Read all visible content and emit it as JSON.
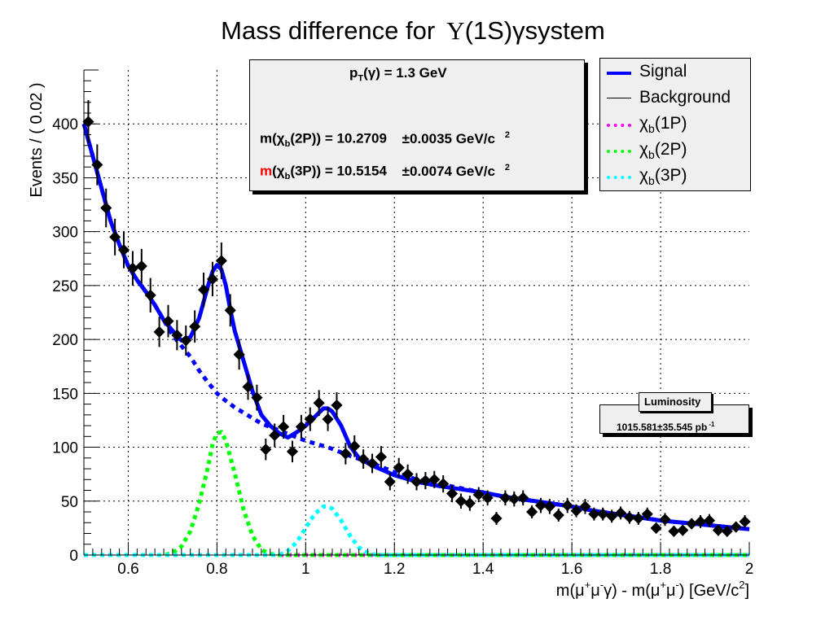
{
  "chart_data": {
    "type": "scatter",
    "title_main": "Mass difference for",
    "title_upsilon": "Υ",
    "title_rest": "(1S)γsystem",
    "ylabel": "Events / ( 0.02 )",
    "xlabel": {
      "p1": "m(μ",
      "s1": "+",
      "p2": "μ",
      "s2": "-",
      "p3": "γ) - m(μ",
      "s3": "+",
      "p4": "μ",
      "s4": "-",
      "p5": ") [GeV/c",
      "s5": "2",
      "p6": "]"
    },
    "xlim": [
      0.5,
      2.0
    ],
    "ylim": [
      0,
      450
    ],
    "xticks": [
      0.6,
      0.8,
      1.0,
      1.2,
      1.4,
      1.6,
      1.8,
      2.0
    ],
    "xtick_labels": [
      "0.6",
      "0.8",
      "1",
      "1.2",
      "1.4",
      "1.6",
      "1.8",
      "2"
    ],
    "yticks": [
      0,
      50,
      100,
      150,
      200,
      250,
      300,
      350,
      400
    ],
    "ytick_labels": [
      "0",
      "50",
      "100",
      "150",
      "200",
      "250",
      "300",
      "350",
      "400"
    ],
    "grid": true,
    "data_points": [
      {
        "x": 0.51,
        "y": 402,
        "err": 20
      },
      {
        "x": 0.53,
        "y": 362,
        "err": 19
      },
      {
        "x": 0.55,
        "y": 322,
        "err": 18
      },
      {
        "x": 0.57,
        "y": 295,
        "err": 17
      },
      {
        "x": 0.59,
        "y": 283,
        "err": 17
      },
      {
        "x": 0.61,
        "y": 266,
        "err": 16
      },
      {
        "x": 0.63,
        "y": 268,
        "err": 16
      },
      {
        "x": 0.65,
        "y": 241,
        "err": 16
      },
      {
        "x": 0.67,
        "y": 207,
        "err": 14
      },
      {
        "x": 0.69,
        "y": 217,
        "err": 15
      },
      {
        "x": 0.71,
        "y": 204,
        "err": 14
      },
      {
        "x": 0.73,
        "y": 199,
        "err": 14
      },
      {
        "x": 0.75,
        "y": 212,
        "err": 15
      },
      {
        "x": 0.77,
        "y": 246,
        "err": 16
      },
      {
        "x": 0.79,
        "y": 256,
        "err": 16
      },
      {
        "x": 0.81,
        "y": 273,
        "err": 17
      },
      {
        "x": 0.83,
        "y": 227,
        "err": 15
      },
      {
        "x": 0.85,
        "y": 186,
        "err": 14
      },
      {
        "x": 0.87,
        "y": 156,
        "err": 12
      },
      {
        "x": 0.89,
        "y": 146,
        "err": 12
      },
      {
        "x": 0.91,
        "y": 98,
        "err": 10
      },
      {
        "x": 0.93,
        "y": 111,
        "err": 11
      },
      {
        "x": 0.95,
        "y": 119,
        "err": 11
      },
      {
        "x": 0.97,
        "y": 96,
        "err": 10
      },
      {
        "x": 0.99,
        "y": 119,
        "err": 11
      },
      {
        "x": 1.01,
        "y": 126,
        "err": 11
      },
      {
        "x": 1.03,
        "y": 141,
        "err": 12
      },
      {
        "x": 1.05,
        "y": 126,
        "err": 11
      },
      {
        "x": 1.07,
        "y": 139,
        "err": 12
      },
      {
        "x": 1.09,
        "y": 94,
        "err": 10
      },
      {
        "x": 1.11,
        "y": 101,
        "err": 10
      },
      {
        "x": 1.13,
        "y": 89,
        "err": 9
      },
      {
        "x": 1.15,
        "y": 85,
        "err": 9
      },
      {
        "x": 1.17,
        "y": 91,
        "err": 10
      },
      {
        "x": 1.19,
        "y": 68,
        "err": 8
      },
      {
        "x": 1.21,
        "y": 81,
        "err": 9
      },
      {
        "x": 1.23,
        "y": 75,
        "err": 9
      },
      {
        "x": 1.25,
        "y": 68,
        "err": 8
      },
      {
        "x": 1.27,
        "y": 69,
        "err": 8
      },
      {
        "x": 1.29,
        "y": 70,
        "err": 8
      },
      {
        "x": 1.31,
        "y": 66,
        "err": 8
      },
      {
        "x": 1.33,
        "y": 57,
        "err": 8
      },
      {
        "x": 1.35,
        "y": 50,
        "err": 7
      },
      {
        "x": 1.37,
        "y": 48,
        "err": 7
      },
      {
        "x": 1.39,
        "y": 56,
        "err": 7
      },
      {
        "x": 1.41,
        "y": 53,
        "err": 7
      },
      {
        "x": 1.43,
        "y": 34,
        "err": 6
      },
      {
        "x": 1.45,
        "y": 53,
        "err": 7
      },
      {
        "x": 1.47,
        "y": 52,
        "err": 7
      },
      {
        "x": 1.49,
        "y": 53,
        "err": 7
      },
      {
        "x": 1.51,
        "y": 40,
        "err": 6
      },
      {
        "x": 1.53,
        "y": 46,
        "err": 7
      },
      {
        "x": 1.55,
        "y": 45,
        "err": 7
      },
      {
        "x": 1.57,
        "y": 37,
        "err": 6
      },
      {
        "x": 1.59,
        "y": 46,
        "err": 7
      },
      {
        "x": 1.61,
        "y": 41,
        "err": 6
      },
      {
        "x": 1.63,
        "y": 45,
        "err": 7
      },
      {
        "x": 1.65,
        "y": 38,
        "err": 6
      },
      {
        "x": 1.67,
        "y": 38,
        "err": 6
      },
      {
        "x": 1.69,
        "y": 36,
        "err": 6
      },
      {
        "x": 1.71,
        "y": 39,
        "err": 6
      },
      {
        "x": 1.73,
        "y": 35,
        "err": 6
      },
      {
        "x": 1.75,
        "y": 34,
        "err": 6
      },
      {
        "x": 1.77,
        "y": 38,
        "err": 6
      },
      {
        "x": 1.79,
        "y": 25,
        "err": 5
      },
      {
        "x": 1.81,
        "y": 33,
        "err": 6
      },
      {
        "x": 1.83,
        "y": 22,
        "err": 5
      },
      {
        "x": 1.85,
        "y": 23,
        "err": 5
      },
      {
        "x": 1.87,
        "y": 29,
        "err": 5
      },
      {
        "x": 1.89,
        "y": 31,
        "err": 6
      },
      {
        "x": 1.91,
        "y": 32,
        "err": 6
      },
      {
        "x": 1.93,
        "y": 23,
        "err": 5
      },
      {
        "x": 1.95,
        "y": 22,
        "err": 5
      },
      {
        "x": 1.97,
        "y": 26,
        "err": 5
      },
      {
        "x": 1.99,
        "y": 31,
        "err": 6
      }
    ],
    "curves": {
      "background": {
        "color": "#0000ff",
        "points": [
          [
            0.5,
            400
          ],
          [
            0.52,
            370
          ],
          [
            0.54,
            340
          ],
          [
            0.56,
            310
          ],
          [
            0.58,
            288
          ],
          [
            0.6,
            268
          ],
          [
            0.62,
            255
          ],
          [
            0.64,
            244
          ],
          [
            0.66,
            232
          ],
          [
            0.68,
            218
          ],
          [
            0.7,
            204
          ],
          [
            0.72,
            194
          ],
          [
            0.74,
            184
          ],
          [
            0.76,
            171
          ],
          [
            0.78,
            160
          ],
          [
            0.8,
            150
          ],
          [
            0.82,
            143
          ],
          [
            0.84,
            137
          ],
          [
            0.86,
            132
          ],
          [
            0.88,
            127
          ],
          [
            0.9,
            122
          ],
          [
            0.95,
            114
          ],
          [
            1.0,
            106
          ],
          [
            1.05,
            100
          ],
          [
            1.1,
            92
          ],
          [
            1.15,
            85
          ],
          [
            1.2,
            77
          ],
          [
            1.25,
            70
          ],
          [
            1.3,
            66
          ],
          [
            1.35,
            62
          ],
          [
            1.4,
            58
          ],
          [
            1.45,
            54
          ],
          [
            1.5,
            51
          ],
          [
            1.55,
            48
          ],
          [
            1.6,
            45
          ],
          [
            1.65,
            41
          ],
          [
            1.7,
            38
          ],
          [
            1.75,
            35
          ],
          [
            1.8,
            32
          ],
          [
            1.85,
            30
          ],
          [
            1.9,
            28
          ],
          [
            1.95,
            26
          ],
          [
            2.0,
            24
          ]
        ]
      },
      "signal": {
        "color": "#0000ff",
        "points": [
          [
            0.5,
            400
          ],
          [
            0.52,
            370
          ],
          [
            0.54,
            340
          ],
          [
            0.56,
            310
          ],
          [
            0.58,
            288
          ],
          [
            0.6,
            268
          ],
          [
            0.62,
            255
          ],
          [
            0.64,
            244
          ],
          [
            0.66,
            232
          ],
          [
            0.68,
            218
          ],
          [
            0.7,
            208
          ],
          [
            0.72,
            199
          ],
          [
            0.74,
            202
          ],
          [
            0.76,
            220
          ],
          [
            0.78,
            250
          ],
          [
            0.79,
            263
          ],
          [
            0.8,
            269
          ],
          [
            0.81,
            265
          ],
          [
            0.82,
            250
          ],
          [
            0.83,
            228
          ],
          [
            0.84,
            208
          ],
          [
            0.86,
            180
          ],
          [
            0.88,
            152
          ],
          [
            0.9,
            130
          ],
          [
            0.92,
            120
          ],
          [
            0.94,
            113
          ],
          [
            0.96,
            109
          ],
          [
            0.98,
            114
          ],
          [
            1.0,
            120
          ],
          [
            1.02,
            128
          ],
          [
            1.04,
            136
          ],
          [
            1.05,
            136
          ],
          [
            1.06,
            133
          ],
          [
            1.08,
            120
          ],
          [
            1.1,
            101
          ],
          [
            1.12,
            90
          ],
          [
            1.15,
            83
          ],
          [
            1.2,
            74
          ],
          [
            1.25,
            68
          ],
          [
            1.3,
            64
          ],
          [
            1.35,
            61
          ],
          [
            1.4,
            58
          ],
          [
            1.45,
            54
          ],
          [
            1.5,
            51
          ],
          [
            1.55,
            48
          ],
          [
            1.6,
            45
          ],
          [
            1.65,
            41
          ],
          [
            1.7,
            38
          ],
          [
            1.75,
            35
          ],
          [
            1.8,
            32
          ],
          [
            1.85,
            30
          ],
          [
            1.9,
            28
          ],
          [
            1.95,
            26
          ],
          [
            2.0,
            24
          ]
        ]
      },
      "chib1P": {
        "color": "#ff00ff",
        "points": [
          [
            0.5,
            0
          ],
          [
            2.0,
            0
          ]
        ]
      },
      "chib2P": {
        "color": "#00ff00",
        "points": [
          [
            0.5,
            0
          ],
          [
            0.68,
            0
          ],
          [
            0.7,
            2
          ],
          [
            0.72,
            8
          ],
          [
            0.74,
            22
          ],
          [
            0.76,
            48
          ],
          [
            0.78,
            82
          ],
          [
            0.79,
            103
          ],
          [
            0.8,
            113
          ],
          [
            0.81,
            114
          ],
          [
            0.82,
            106
          ],
          [
            0.84,
            76
          ],
          [
            0.86,
            42
          ],
          [
            0.88,
            18
          ],
          [
            0.9,
            5
          ],
          [
            0.92,
            1
          ],
          [
            0.94,
            0
          ],
          [
            2.0,
            0
          ]
        ]
      },
      "chib3P": {
        "color": "#00ffff",
        "points": [
          [
            0.5,
            0
          ],
          [
            0.94,
            0
          ],
          [
            0.96,
            4
          ],
          [
            0.98,
            12
          ],
          [
            1.0,
            25
          ],
          [
            1.02,
            38
          ],
          [
            1.04,
            45
          ],
          [
            1.05,
            45
          ],
          [
            1.06,
            43
          ],
          [
            1.08,
            32
          ],
          [
            1.1,
            18
          ],
          [
            1.12,
            7
          ],
          [
            1.14,
            2
          ],
          [
            1.16,
            0
          ],
          [
            2.0,
            0
          ]
        ]
      }
    },
    "info_box": {
      "pt_label": "p",
      "pt_sub": "T",
      "pt_rest": "(γ) = 1.3 GeV",
      "line1_pre": "m(χ",
      "line1_sub": "b",
      "line1_mid": "(2P)) = 10.2709",
      "line1_err": "±0.0035 GeV/c",
      "line1_sup": "2",
      "line2_m": "m",
      "line2_pre": "(χ",
      "line2_sub": "b",
      "line2_mid": "(3P)) = 10.5154",
      "line2_err": "±0.0074 GeV/c",
      "line2_sup": "2",
      "highlight_color": "#ff0000"
    },
    "legend": {
      "placement": "top-right",
      "entries": [
        {
          "label": "Signal",
          "sub": "",
          "rest": "",
          "color": "#0000ff",
          "style": "thick"
        },
        {
          "label": "Background",
          "sub": "",
          "rest": "",
          "color": "#000000",
          "style": "thin"
        },
        {
          "label": "χ",
          "sub": "b",
          "rest": "(1P)",
          "color": "#ff00ff",
          "style": "dotted"
        },
        {
          "label": "χ",
          "sub": "b",
          "rest": "(2P)",
          "color": "#00ff00",
          "style": "dotted"
        },
        {
          "label": "χ",
          "sub": "b",
          "rest": "(3P)",
          "color": "#00ffff",
          "style": "dotted"
        }
      ]
    },
    "luminosity": {
      "header": "Luminosity",
      "value": "1015.581±35.545 pb",
      "sup": "-1"
    }
  }
}
